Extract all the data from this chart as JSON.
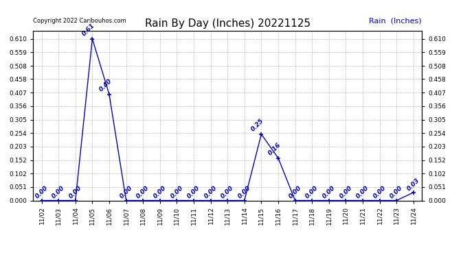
{
  "title": "Rain By Day (Inches) 20221125",
  "copyright": "Copyright 2022 Caribouhos.com",
  "legend_label": "Rain  (Inches)",
  "x_labels": [
    "11/02",
    "11/03",
    "11/04",
    "11/05",
    "11/06",
    "11/07",
    "11/08",
    "11/09",
    "11/10",
    "11/11",
    "11/12",
    "11/13",
    "11/14",
    "11/15",
    "11/16",
    "11/17",
    "11/18",
    "11/19",
    "11/20",
    "11/21",
    "11/22",
    "11/23",
    "11/24"
  ],
  "y_values": [
    0.0,
    0.0,
    0.0,
    0.61,
    0.4,
    0.0,
    0.0,
    0.0,
    0.0,
    0.0,
    0.0,
    0.0,
    0.0,
    0.25,
    0.16,
    0.0,
    0.0,
    0.0,
    0.0,
    0.0,
    0.0,
    0.0,
    0.03
  ],
  "line_color": "#0000bb",
  "marker_color": "#0000bb",
  "title_fontsize": 11,
  "label_fontsize": 6.5,
  "annotation_fontsize": 6.5,
  "copyright_fontsize": 6,
  "legend_fontsize": 8,
  "ylim_min": 0.0,
  "ylim_max": 0.64,
  "yticks": [
    0.0,
    0.051,
    0.102,
    0.152,
    0.203,
    0.254,
    0.305,
    0.356,
    0.407,
    0.458,
    0.508,
    0.559,
    0.61
  ],
  "background_color": "#ffffff",
  "grid_color": "#aaaaaa"
}
